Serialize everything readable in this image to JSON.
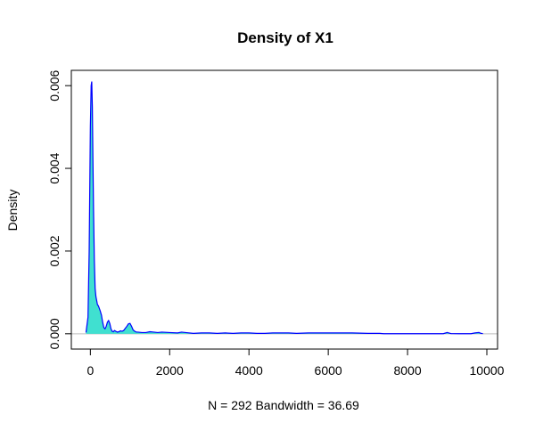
{
  "chart_data": {
    "type": "area",
    "title": "Density of X1",
    "xlabel": "N = 292   Bandwidth = 36.69",
    "ylabel": "Density",
    "xlim": [
      -480,
      10270
    ],
    "ylim": [
      -0.00037,
      0.00637
    ],
    "x_ticks": [
      0,
      2000,
      4000,
      6000,
      8000,
      10000
    ],
    "y_ticks": [
      0.0,
      0.002,
      0.004,
      0.006
    ],
    "x_tick_labels": [
      "0",
      "2000",
      "4000",
      "6000",
      "8000",
      "10000"
    ],
    "y_tick_labels": [
      "0.000",
      "0.002",
      "0.004",
      "0.006"
    ],
    "fill_color": "#40E0D0",
    "line_color": "#0000FF",
    "baseline_color": "#BEBEBE",
    "series": [
      {
        "x": [
          -110,
          -60,
          -30,
          0,
          20,
          35,
          50,
          65,
          80,
          100,
          120,
          140,
          160,
          180,
          200,
          220,
          250,
          280,
          310,
          340,
          370,
          400,
          430,
          460,
          490,
          520,
          550,
          580,
          610,
          640,
          680,
          720,
          760,
          800,
          840,
          880,
          920,
          960,
          1000,
          1040,
          1080,
          1120,
          1160,
          1200,
          1300,
          1400,
          1500,
          1600,
          1700,
          1800,
          2000,
          2200,
          2300,
          2400,
          2600,
          2800,
          3000,
          3200,
          3400,
          3600,
          3800,
          4000,
          4200,
          4400,
          4600,
          4800,
          5000,
          5200,
          5500,
          5800,
          6200,
          6600,
          7000,
          7300,
          7400,
          7600,
          8000,
          8500,
          8900,
          9000,
          9100,
          9300,
          9600,
          9700,
          9800,
          9850,
          9900
        ],
        "y": [
          3e-05,
          0.0004,
          0.002,
          0.005,
          0.006,
          0.0061,
          0.0055,
          0.0042,
          0.003,
          0.0018,
          0.0011,
          0.0009,
          0.0008,
          0.0007,
          0.00068,
          0.00063,
          0.00055,
          0.00045,
          0.00028,
          0.00015,
          0.00012,
          0.00018,
          0.00028,
          0.00032,
          0.00025,
          0.00012,
          6e-05,
          5e-05,
          8e-05,
          6e-05,
          4e-05,
          5e-05,
          7e-05,
          6e-05,
          8e-05,
          0.00013,
          0.00018,
          0.00024,
          0.00025,
          0.00018,
          9e-05,
          6e-05,
          4e-05,
          4e-05,
          3e-05,
          3e-05,
          5e-05,
          4e-05,
          3e-05,
          4e-05,
          3e-05,
          2e-05,
          4e-05,
          3e-05,
          1e-05,
          2e-05,
          2e-05,
          1e-05,
          2e-05,
          1e-05,
          2e-05,
          2e-05,
          1e-05,
          1e-05,
          2e-05,
          2e-05,
          2e-05,
          1e-05,
          2e-05,
          2e-05,
          2e-05,
          2e-05,
          1e-05,
          1e-05,
          2e-06,
          2e-06,
          1e-06,
          1e-06,
          2e-06,
          3e-05,
          3e-06,
          1e-06,
          2e-06,
          2e-05,
          3e-05,
          1e-05,
          2e-06
        ]
      }
    ]
  }
}
